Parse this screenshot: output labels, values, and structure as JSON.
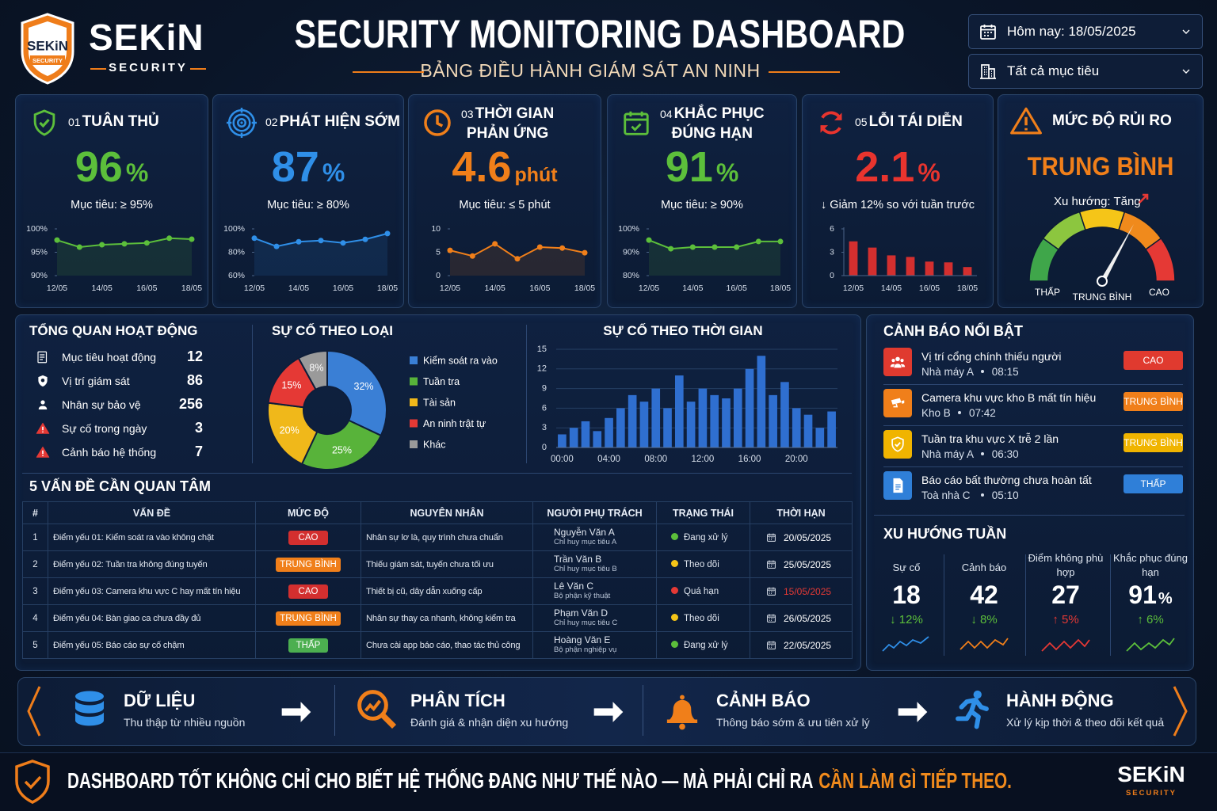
{
  "header": {
    "logo_text": "SEKiN",
    "logo_sub": "SECURITY",
    "brand": "SEKiN",
    "brand_sub": "SECURITY",
    "title": "SECURITY MONITORING DASHBOARD",
    "subtitle": "BẢNG ĐIỀU HÀNH GIÁM SÁT AN NINH",
    "date_filter": "Hôm nay: 18/05/2025",
    "target_filter": "Tất cả mục tiêu"
  },
  "kpis": [
    {
      "num": "01",
      "title": [
        "TUÂN THỦ"
      ],
      "value": "96",
      "unit": "%",
      "note": "Mục tiêu: ≥ 95%",
      "color": "#5cbf3b",
      "chart_data": {
        "type": "line",
        "categories": [
          "12/05",
          null,
          "14/05",
          null,
          "16/05",
          null,
          "18/05"
        ],
        "values": [
          97.6,
          96.1,
          96.6,
          96.8,
          97,
          98,
          97.8
        ],
        "ylim": [
          90,
          100
        ],
        "yticks": [
          {
            "value": 90,
            "label": "90%"
          },
          {
            "value": 95,
            "label": "95%"
          },
          {
            "value": 100,
            "label": "100%"
          }
        ]
      }
    },
    {
      "num": "02",
      "title": [
        "PHÁT HIỆN SỚM"
      ],
      "value": "87",
      "unit": "%",
      "note": "Mục tiêu: ≥ 80%",
      "color": "#2f8fe8",
      "chart_data": {
        "type": "line",
        "categories": [
          "12/05",
          null,
          "14/05",
          null,
          "16/05",
          null,
          "18/05"
        ],
        "values": [
          92,
          85,
          89,
          90,
          88,
          91,
          96
        ],
        "ylim": [
          60,
          100
        ],
        "yticks": [
          {
            "value": 60,
            "label": "60%"
          },
          {
            "value": 80,
            "label": "80%"
          },
          {
            "value": 100,
            "label": "100%"
          }
        ]
      }
    },
    {
      "num": "03",
      "title": [
        "THỜI GIAN",
        "PHẢN ỨNG"
      ],
      "value": "4.6",
      "unit": "phút",
      "note": "Mục tiêu: ≤ 5 phút",
      "color": "#f07f1a",
      "chart_data": {
        "type": "line",
        "categories": [
          "12/05",
          null,
          "14/05",
          null,
          "16/05",
          null,
          "18/05"
        ],
        "values": [
          5.4,
          4.2,
          6.8,
          3.6,
          6.1,
          5.9,
          4.9
        ],
        "ylim": [
          0,
          10
        ],
        "yticks": [
          0,
          5,
          10
        ]
      }
    },
    {
      "num": "04",
      "title": [
        "KHẮC PHỤC",
        "ĐÚNG HẠN"
      ],
      "value": "91",
      "unit": "%",
      "note": "Mục tiêu: ≥ 90%",
      "color": "#5cbf3b",
      "chart_data": {
        "type": "line",
        "categories": [
          "12/05",
          null,
          "14/05",
          null,
          "16/05",
          null,
          "18/05"
        ],
        "values": [
          95.2,
          91.5,
          92.2,
          92.2,
          92.2,
          94.6,
          94.6
        ],
        "ylim": [
          80,
          100
        ],
        "yticks": [
          {
            "value": 80,
            "label": "80%"
          },
          {
            "value": 90,
            "label": "90%"
          },
          {
            "value": 100,
            "label": "100%"
          }
        ]
      }
    },
    {
      "num": "05",
      "title": [
        "LỖI TÁI DIỄN"
      ],
      "value": "2.1",
      "unit": "%",
      "note": "↓ Giảm 12% so với tuần trước",
      "color": "#e8342e",
      "chart_data": {
        "type": "bar",
        "categories": [
          "12/05",
          null,
          "14/05",
          null,
          "16/05",
          null,
          "18/05"
        ],
        "values": [
          4.4,
          3.6,
          2.6,
          2.4,
          1.8,
          1.7,
          1.1
        ],
        "ylim": [
          0,
          6
        ],
        "yticks": [
          0,
          3,
          6
        ]
      }
    }
  ],
  "risk": {
    "title": "MỨC ĐỘ RỦI RO",
    "level": "TRUNG BÌNH",
    "trend": "Xu hướng: Tăng",
    "gauge_labels": [
      "THẤP",
      "TRUNG BÌNH",
      "CAO"
    ]
  },
  "overview": {
    "title": "TỔNG QUAN HOẠT ĐỘNG",
    "items": [
      {
        "label": "Mục tiêu hoạt động",
        "value": "12"
      },
      {
        "label": "Vị trí giám sát",
        "value": "86"
      },
      {
        "label": "Nhân sự bảo vệ",
        "value": "256"
      },
      {
        "label": "Sự cố trong ngày",
        "value": "3"
      },
      {
        "label": "Cảnh báo hệ thống",
        "value": "7"
      }
    ]
  },
  "incidents_by_type": {
    "chart_data": {
      "type": "pie",
      "title": "SỰ CỐ THEO LOẠI",
      "categories": [
        "Kiểm soát ra vào",
        "Tuần tra",
        "Tài sản",
        "An ninh trật tự",
        "Khác"
      ],
      "values": [
        32,
        25,
        20,
        15,
        8
      ],
      "value_labels": [
        "32%",
        "25%",
        "20%",
        "15%",
        "8%"
      ],
      "colors": [
        "#3a7fd5",
        "#58b33a",
        "#f0b81a",
        "#e53935",
        "#9a9a9a"
      ]
    }
  },
  "incidents_by_time": {
    "chart_data": {
      "type": "bar",
      "title": "SỰ CỐ THEO THỜI GIAN",
      "categories": [
        "00:00",
        null,
        null,
        null,
        "04:00",
        null,
        null,
        null,
        "08:00",
        null,
        null,
        null,
        "12:00",
        null,
        null,
        null,
        "16:00",
        null,
        null,
        null,
        "20:00",
        null,
        null,
        null
      ],
      "values": [
        2,
        3,
        4,
        2.5,
        4.5,
        6,
        8,
        7,
        9,
        6,
        11,
        7,
        9,
        8,
        7.5,
        9,
        12,
        14,
        8,
        10,
        6,
        5,
        3,
        5.5
      ],
      "color": "#2f6fd0",
      "ylim": [
        0,
        15
      ],
      "yticks": [
        0,
        3,
        6,
        9,
        12,
        15
      ],
      "grid": true
    }
  },
  "issues": {
    "title": "5 VẤN ĐỀ CẦN QUAN TÂM",
    "headers": [
      "#",
      "VẤN ĐỀ",
      "MỨC ĐỘ",
      "NGUYÊN NHÂN",
      "NGƯỜI PHỤ TRÁCH",
      "TRẠNG THÁI",
      "THỜI HẠN"
    ],
    "rows": [
      {
        "num": "1",
        "issue": "Điểm yếu 01: Kiểm soát ra vào không chặt",
        "level": "CAO",
        "level_color": "#d32f2f",
        "cause": "Nhân sự lơ là, quy trình chưa chuẩn",
        "person": "Nguyễn Văn A",
        "role": "Chỉ huy mục tiêu A",
        "status": "Đang xử lý",
        "status_color": "#5cbf3b",
        "deadline": "20/05/2025",
        "deadline_color": "#ffffff"
      },
      {
        "num": "2",
        "issue": "Điểm yếu 02: Tuần tra không đúng tuyến",
        "level": "TRUNG BÌNH",
        "level_color": "#f07f1a",
        "cause": "Thiếu giám sát, tuyến chưa tối ưu",
        "person": "Trần Văn B",
        "role": "Chỉ huy mục tiêu B",
        "status": "Theo dõi",
        "status_color": "#f5c518",
        "deadline": "25/05/2025",
        "deadline_color": "#ffffff"
      },
      {
        "num": "3",
        "issue": "Điểm yếu 03: Camera khu vực C hay mất tín hiệu",
        "level": "CAO",
        "level_color": "#d32f2f",
        "cause": "Thiết bị cũ, dây dẫn xuống cấp",
        "person": "Lê Văn C",
        "role": "Bộ phận kỹ thuật",
        "status": "Quá hạn",
        "status_color": "#e53935",
        "deadline": "15/05/2025",
        "deadline_color": "#e53935"
      },
      {
        "num": "4",
        "issue": "Điểm yếu 04: Bàn giao ca chưa đầy đủ",
        "level": "TRUNG BÌNH",
        "level_color": "#f07f1a",
        "cause": "Nhân sự thay ca nhanh, không kiểm tra",
        "person": "Phạm Văn D",
        "role": "Chỉ huy mục tiêu C",
        "status": "Theo dõi",
        "status_color": "#f5c518",
        "deadline": "26/05/2025",
        "deadline_color": "#ffffff"
      },
      {
        "num": "5",
        "issue": "Điểm yếu 05: Báo cáo sự cố chậm",
        "level": "THẤP",
        "level_color": "#4caf50",
        "cause": "Chưa cài app báo cáo, thao tác thủ công",
        "person": "Hoàng Văn E",
        "role": "Bộ phận nghiệp vụ",
        "status": "Đang xử lý",
        "status_color": "#5cbf3b",
        "deadline": "22/05/2025",
        "deadline_color": "#ffffff"
      }
    ]
  },
  "alerts": {
    "title": "CẢNH BÁO NỔI BẬT",
    "items": [
      {
        "title": "Vị trí cổng chính thiếu người",
        "place": "Nhà máy A",
        "time": "08:15",
        "level": "CAO",
        "color": "#e03a2f"
      },
      {
        "title": "Camera khu vực kho B mất tín hiệu",
        "place": "Kho B",
        "time": "07:42",
        "level": "TRUNG BÌNH",
        "color": "#f07f1a"
      },
      {
        "title": "Tuần tra khu vực X trễ 2 lần",
        "place": "Nhà máy A",
        "time": "06:30",
        "level": "TRUNG BÌNH",
        "color": "#f0b400"
      },
      {
        "title": "Báo cáo bất thường chưa hoàn tất",
        "place": "Toà nhà C",
        "time": "05:10",
        "level": "THẤP",
        "color": "#2f7fd8"
      }
    ]
  },
  "weekly": {
    "title": "XU HƯỚNG TUẦN",
    "items": [
      {
        "label": "Sự cố",
        "value": "18",
        "change": "↓ 12%",
        "color": "#5cbf3b",
        "line_color": "#2f8fe8"
      },
      {
        "label": "Cảnh báo",
        "value": "42",
        "change": "↓ 8%",
        "color": "#5cbf3b",
        "line_color": "#f07f1a"
      },
      {
        "label": "Điểm không phù hợp",
        "value": "27",
        "change": "↑ 5%",
        "color": "#e53935",
        "line_color": "#e53935"
      },
      {
        "label": "Khắc phục đúng hạn",
        "value": "91",
        "unit": "%",
        "change": "↑ 6%",
        "color": "#5cbf3b",
        "line_color": "#5cbf3b"
      }
    ]
  },
  "flow": [
    {
      "title": "DỮ LIỆU",
      "desc": "Thu thập từ nhiều nguồn"
    },
    {
      "title": "PHÂN TÍCH",
      "desc": "Đánh giá & nhận diện xu hướng"
    },
    {
      "title": "CẢNH BÁO",
      "desc": "Thông báo sớm & ưu tiên xử lý"
    },
    {
      "title": "HÀNH ĐỘNG",
      "desc": "Xử lý kịp thời & theo dõi kết quả"
    }
  ],
  "footer": {
    "message": "DASHBOARD TỐT KHÔNG CHỈ CHO BIẾT HỆ THỐNG ĐANG NHƯ THẾ NÀO — MÀ PHẢI CHỈ RA",
    "highlight": "CẦN LÀM GÌ TIẾP THEO.",
    "brand": "SEKiN",
    "brand_sub": "SECURITY"
  }
}
